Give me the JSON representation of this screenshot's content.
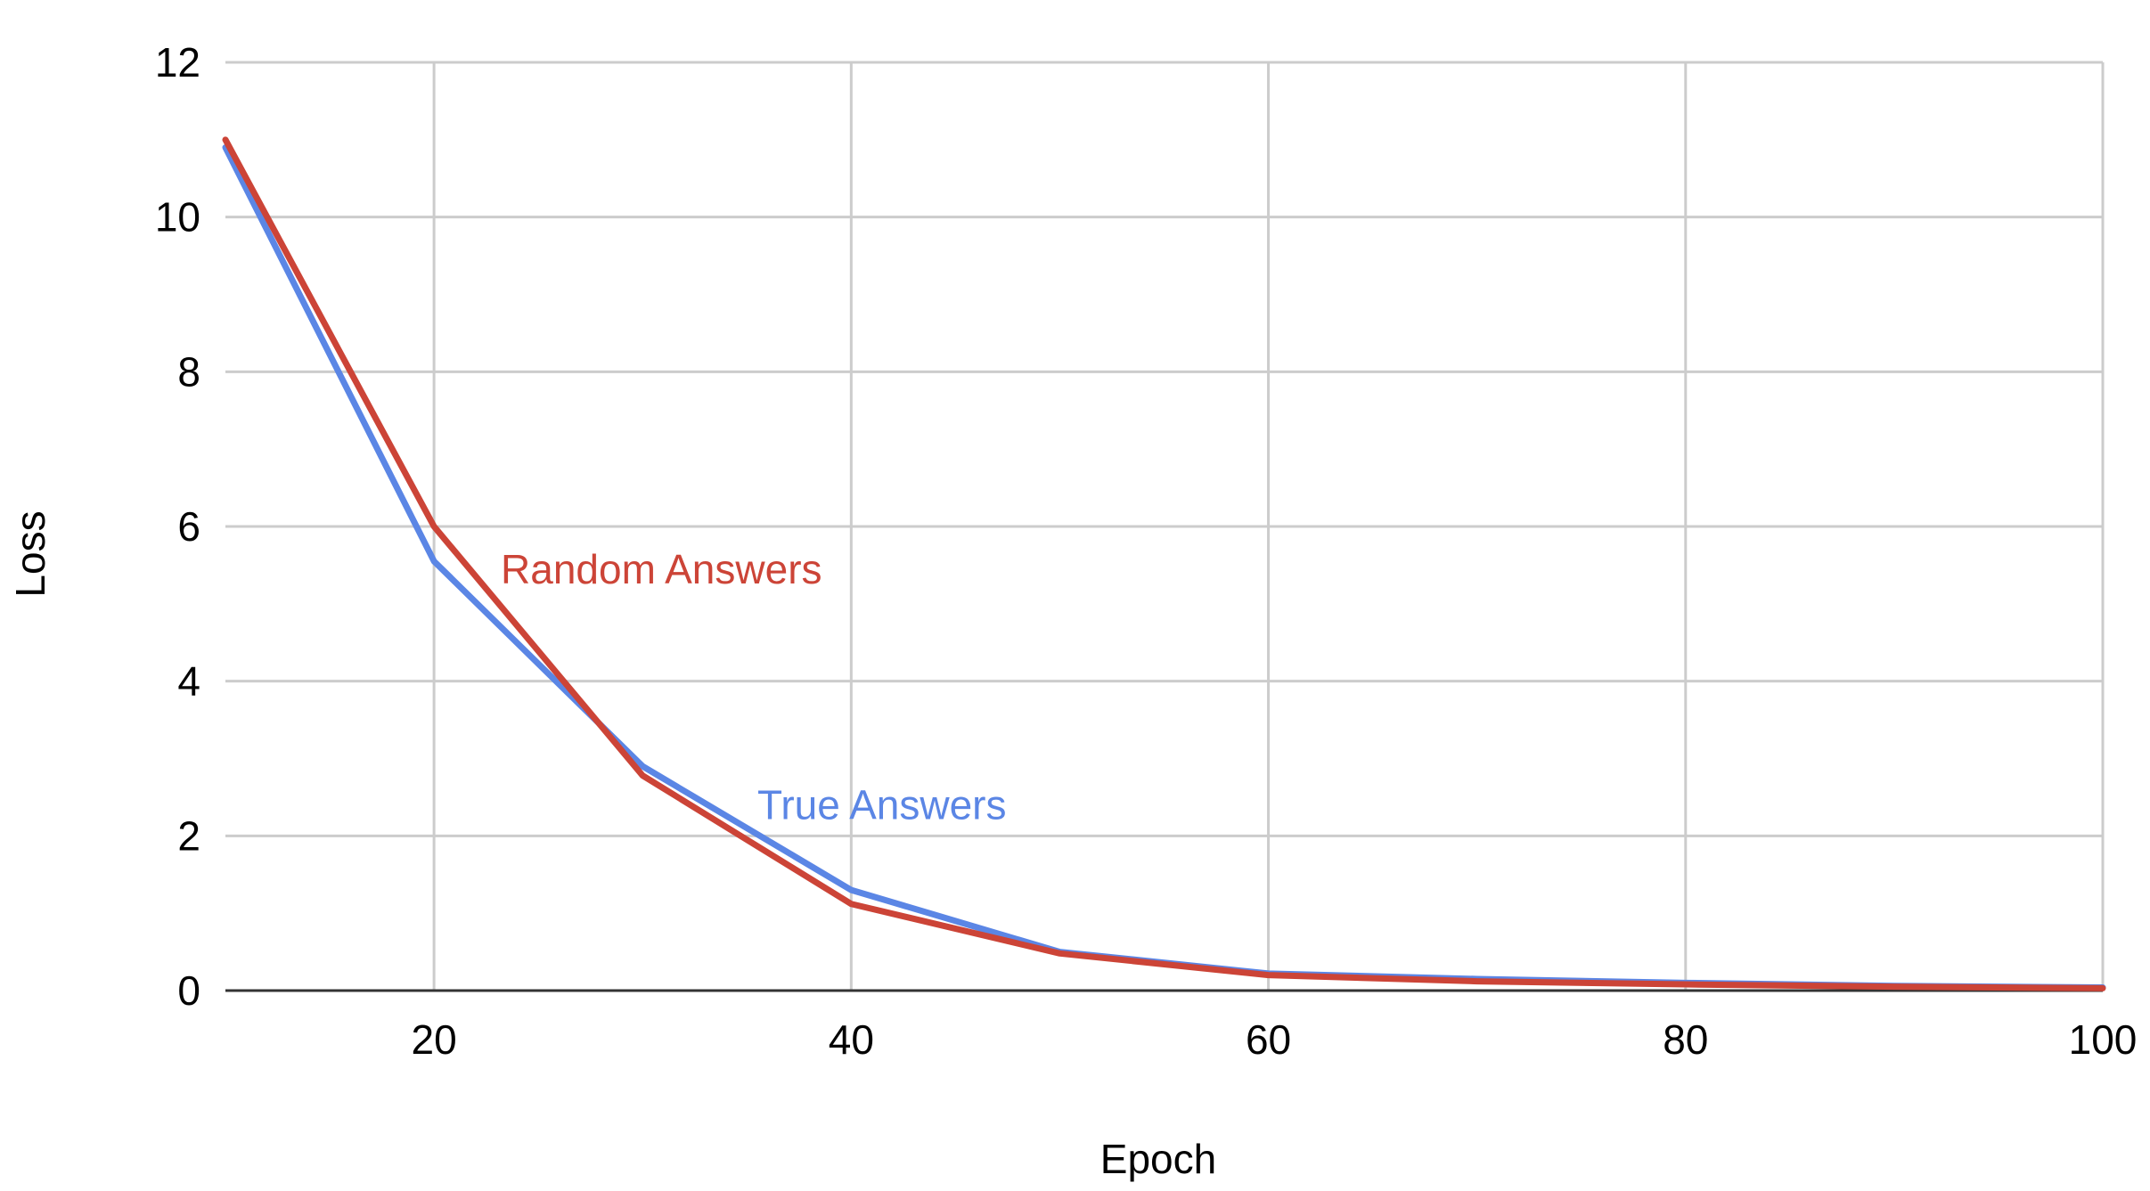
{
  "chart_data": {
    "type": "line",
    "title": "",
    "xlabel": "Epoch",
    "ylabel": "Loss",
    "xlim": [
      10,
      100
    ],
    "ylim": [
      0,
      12
    ],
    "x_ticks": [
      20,
      40,
      60,
      80,
      100
    ],
    "y_ticks": [
      0,
      2,
      4,
      6,
      8,
      10,
      12
    ],
    "grid": true,
    "x": [
      10,
      20,
      30,
      40,
      50,
      60,
      70,
      80,
      90,
      100
    ],
    "series": [
      {
        "name": "True Answers",
        "color": "#5b86e5",
        "values": [
          10.9,
          5.55,
          2.9,
          1.3,
          0.5,
          0.22,
          0.15,
          0.1,
          0.06,
          0.04
        ]
      },
      {
        "name": "Random Answers",
        "color": "#cc4437",
        "values": [
          11.0,
          6.0,
          2.78,
          1.12,
          0.48,
          0.2,
          0.12,
          0.08,
          0.05,
          0.03
        ]
      }
    ],
    "colors": {
      "grid": "#cccccc",
      "baseline": "#333333",
      "text": "#000000"
    }
  }
}
